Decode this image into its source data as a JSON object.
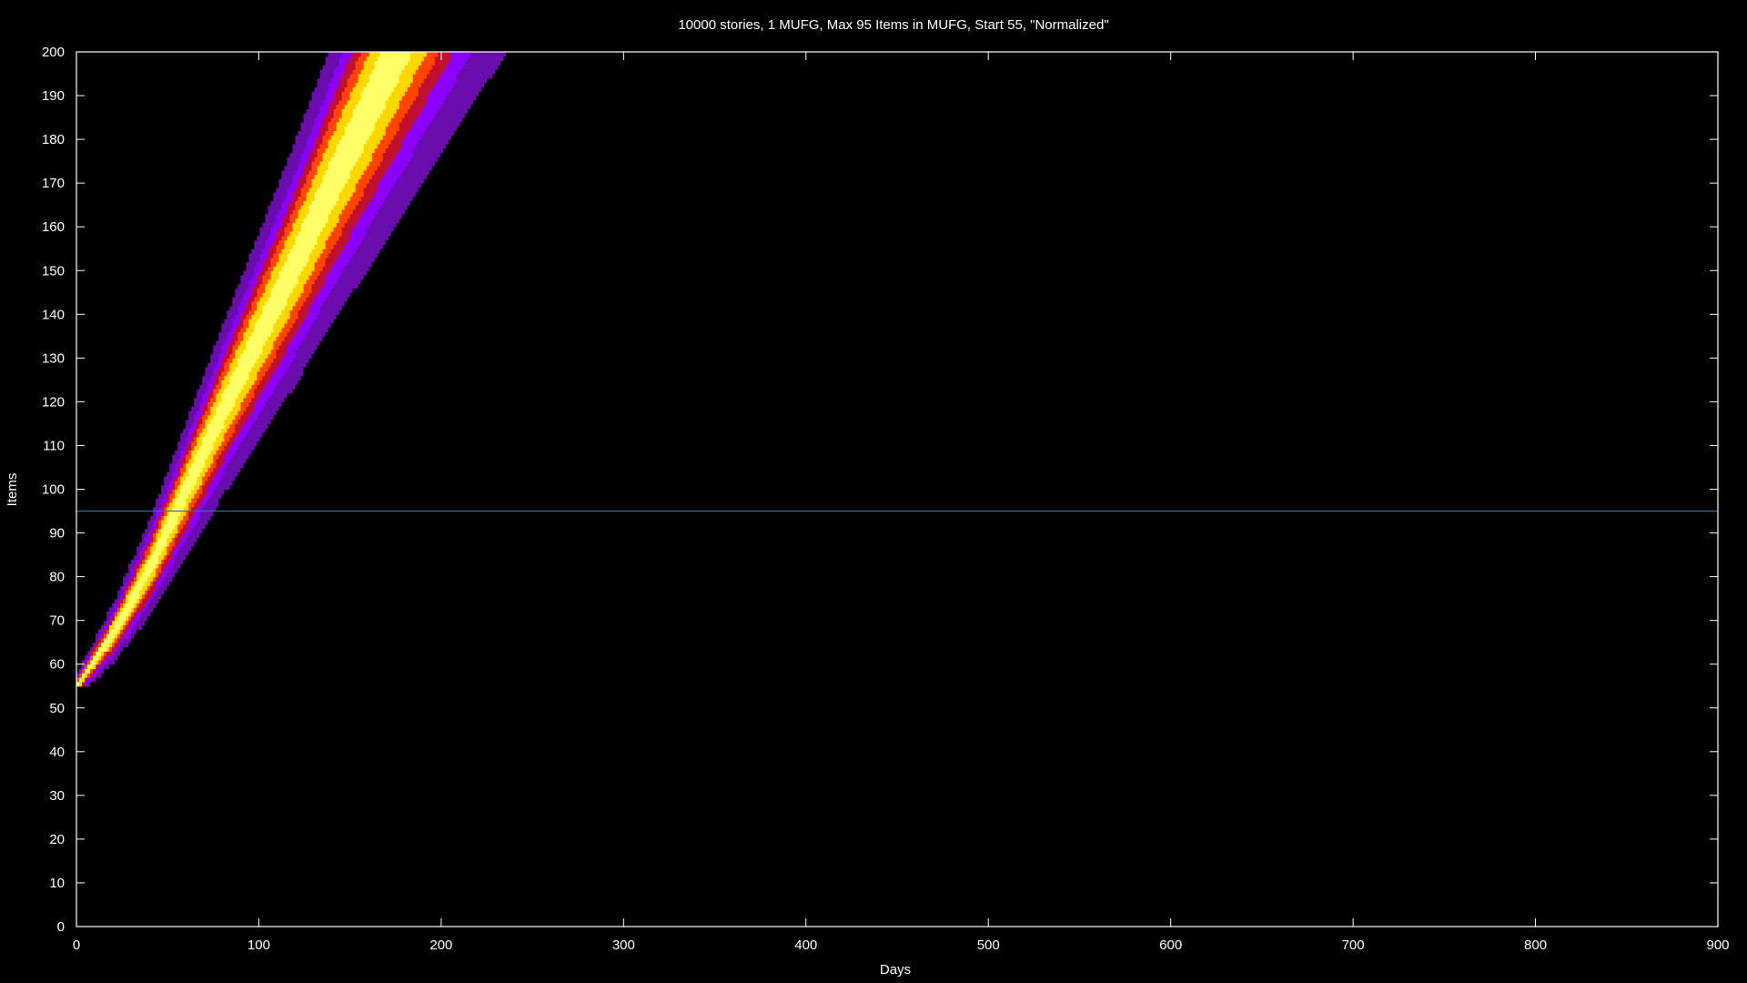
{
  "chart_data": {
    "type": "heatmap",
    "title": "10000 stories, 1 MUFG, Max 95 Items in MUFG, Start 55, \"Normalized\"",
    "xlabel": "Days",
    "ylabel": "Items",
    "xlim": [
      0,
      900
    ],
    "ylim": [
      0,
      200
    ],
    "x_ticks": [
      "0",
      "100",
      "200",
      "300",
      "400",
      "500",
      "600",
      "700",
      "800",
      "900"
    ],
    "y_ticks": [
      "0",
      "10",
      "20",
      "30",
      "40",
      "50",
      "60",
      "70",
      "80",
      "90",
      "100",
      "110",
      "120",
      "130",
      "140",
      "150",
      "160",
      "170",
      "180",
      "190",
      "200"
    ],
    "grid": false,
    "background": "#000000",
    "axis_color": "#ffffff",
    "reference_line": {
      "y": 95,
      "color": "#2d6fb0"
    },
    "density_ridge": [
      {
        "day": 0,
        "items": 55
      },
      {
        "day": 20,
        "items": 67
      },
      {
        "day": 40,
        "items": 82
      },
      {
        "day": 60,
        "items": 100
      },
      {
        "day": 80,
        "items": 118
      },
      {
        "day": 100,
        "items": 135
      },
      {
        "day": 120,
        "items": 152
      },
      {
        "day": 140,
        "items": 170
      },
      {
        "day": 160,
        "items": 187
      },
      {
        "day": 175,
        "items": 200
      }
    ],
    "colormap": [
      "#000000",
      "#6a0dad",
      "#8b00ff",
      "#c0102f",
      "#ff4500",
      "#ffd700",
      "#ffff66"
    ]
  }
}
